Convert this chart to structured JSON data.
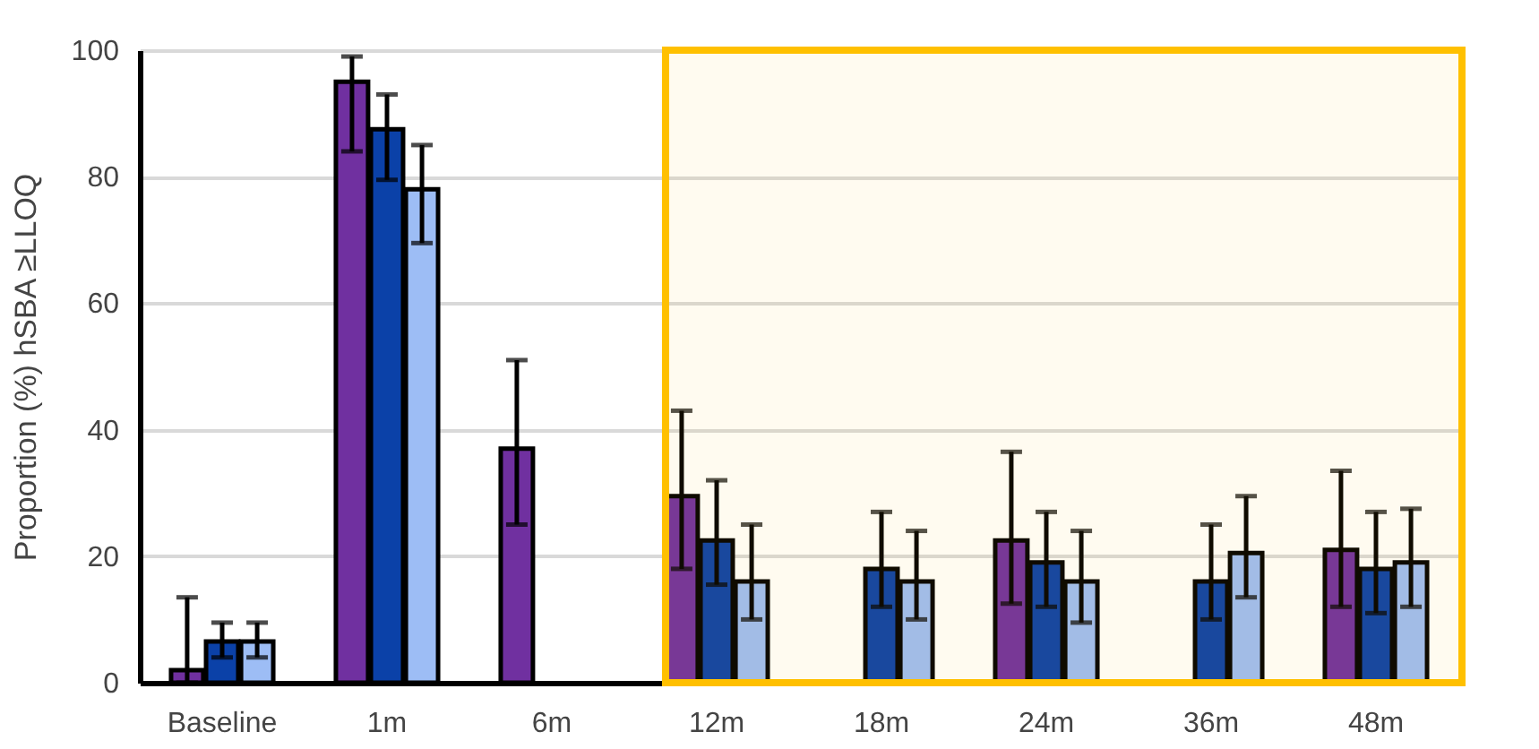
{
  "chart_data": {
    "type": "bar",
    "ylabel": "Proportion (%) hSBA ≥LLOQ",
    "categories": [
      "Baseline",
      "1m",
      "6m",
      "12m",
      "18m",
      "24m",
      "36m",
      "48m"
    ],
    "series": [
      {
        "color": "#7030a0",
        "values": [
          2,
          95,
          37,
          29.5,
          null,
          22.5,
          null,
          21
        ],
        "errors": [
          [
            0,
            13.5
          ],
          [
            84,
            99
          ],
          [
            25,
            51
          ],
          [
            18,
            43
          ],
          null,
          [
            12.5,
            36.5
          ],
          null,
          [
            12,
            33.5
          ]
        ]
      },
      {
        "color": "#0b41a8",
        "values": [
          6.5,
          87.5,
          null,
          22.5,
          18,
          19,
          16,
          18
        ],
        "errors": [
          [
            4,
            9.5
          ],
          [
            79.5,
            93
          ],
          null,
          [
            15.5,
            32
          ],
          [
            12,
            27
          ],
          [
            12,
            27
          ],
          [
            10,
            25
          ],
          [
            11,
            27
          ]
        ]
      },
      {
        "color": "#9dbdf5",
        "values": [
          6.5,
          78,
          null,
          16,
          16,
          16,
          20.5,
          19
        ],
        "errors": [
          [
            4,
            9.5
          ],
          [
            69.5,
            85
          ],
          null,
          [
            10,
            25
          ],
          [
            10,
            24
          ],
          [
            9.5,
            24
          ],
          [
            13.5,
            29.5
          ],
          [
            12,
            27.5
          ]
        ]
      }
    ],
    "ylim": [
      0,
      100
    ],
    "yticks": [
      0,
      20,
      40,
      60,
      80,
      100
    ],
    "grid": "y",
    "bands": [
      {
        "axis": "x",
        "from": "12m",
        "to": "48m",
        "color": "#ffc000"
      }
    ]
  }
}
